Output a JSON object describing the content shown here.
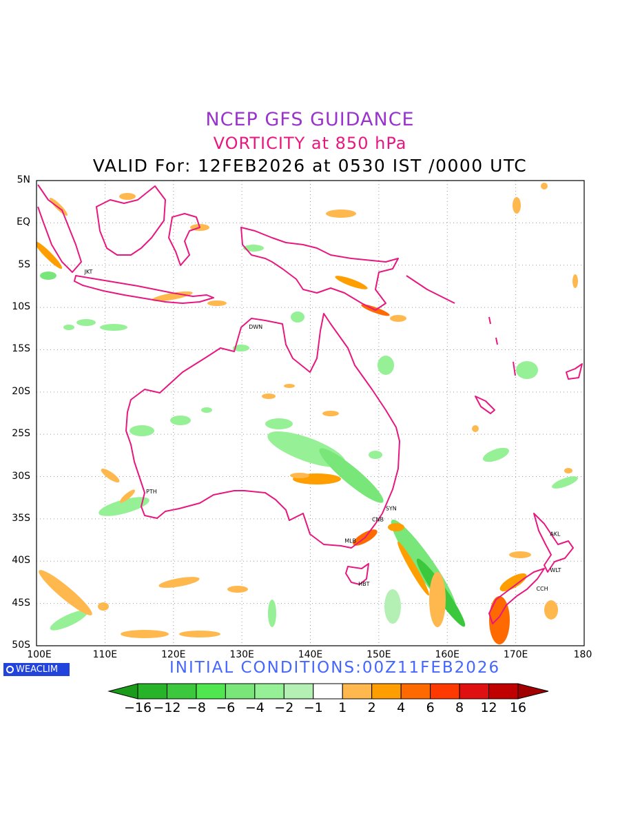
{
  "header": {
    "line1": "NCEP GFS GUIDANCE",
    "line2": "VORTICITY at 850 hPa",
    "line3": "VALID For: 12FEB2026 at 0530 IST /0000 UTC"
  },
  "map": {
    "lat_labels": [
      "5N",
      "EQ",
      "5S",
      "10S",
      "15S",
      "20S",
      "25S",
      "30S",
      "35S",
      "40S",
      "45S",
      "50S"
    ],
    "lon_labels": [
      "100E",
      "110E",
      "120E",
      "130E",
      "140E",
      "150E",
      "160E",
      "170E",
      "180"
    ],
    "lat_range": [
      5,
      -50
    ],
    "lon_range": [
      100,
      180
    ],
    "cities": [
      {
        "code": "JKT",
        "lon": 107,
        "lat": -6
      },
      {
        "code": "DWN",
        "lon": 131,
        "lat": -12.5
      },
      {
        "code": "PTH",
        "lon": 116,
        "lat": -32
      },
      {
        "code": "SYN",
        "lon": 151,
        "lat": -34
      },
      {
        "code": "CNB",
        "lon": 149,
        "lat": -35.3
      },
      {
        "code": "MLB",
        "lon": 145,
        "lat": -37.8
      },
      {
        "code": "HBT",
        "lon": 147,
        "lat": -42.9
      },
      {
        "code": "AKL",
        "lon": 175,
        "lat": -37
      },
      {
        "code": "WLT",
        "lon": 175,
        "lat": -41.3
      },
      {
        "code": "CCH",
        "lon": 173,
        "lat": -43.5
      }
    ],
    "colors": {
      "coast": "#e8177f",
      "grid": "#9a9a9a"
    }
  },
  "footer": {
    "logo": "WEACLIM",
    "initial": "INITIAL CONDITIONS:00Z11FEB2026"
  },
  "colorbar": {
    "labels": [
      "−16",
      "−12",
      "−8",
      "−6",
      "−4",
      "−2",
      "−1",
      "1",
      "2",
      "4",
      "6",
      "8",
      "12",
      "16"
    ],
    "colors": [
      "#1a9c1a",
      "#28b428",
      "#3cc83c",
      "#50e650",
      "#78e678",
      "#96f096",
      "#b4f0b4",
      "#ffffff",
      "#ffb84d",
      "#ff9e00",
      "#ff6a00",
      "#ff3a00",
      "#e01010",
      "#c00000",
      "#a00000"
    ]
  }
}
